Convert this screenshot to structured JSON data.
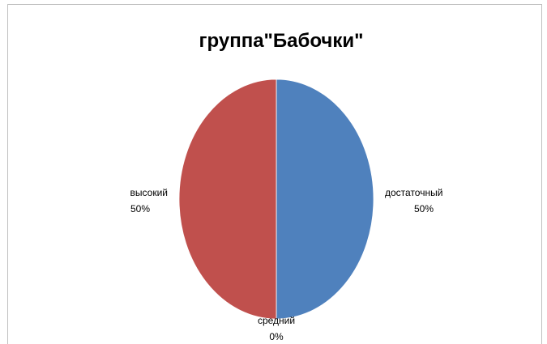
{
  "chart_data": {
    "type": "pie",
    "title": "группа\"Бабочки\"",
    "categories": [
      "достаточный",
      "средний",
      "высокий"
    ],
    "values": [
      50,
      0,
      50
    ],
    "value_labels": [
      "50%",
      "0%",
      "50%"
    ],
    "colors": [
      "#4f81bd",
      "#9bbb59",
      "#c0504d"
    ],
    "legend": "none",
    "data_labels": "outside"
  }
}
